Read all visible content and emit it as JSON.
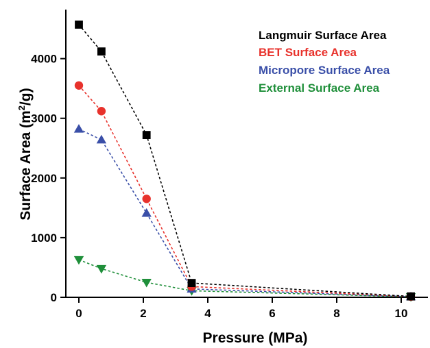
{
  "chart_data": {
    "type": "line",
    "title": "",
    "xlabel": "Pressure (MPa)",
    "ylabel_main": "Surface Area (m",
    "ylabel_sup": "2",
    "ylabel_tail": "/g)",
    "xlim": [
      0,
      10.8
    ],
    "ylim": [
      0,
      4750
    ],
    "x_ticks": [
      0,
      2,
      4,
      6,
      8,
      10
    ],
    "y_ticks": [
      0,
      1000,
      2000,
      3000,
      4000
    ],
    "legend_position": "top-right",
    "series": [
      {
        "name": "Langmuir Surface Area",
        "color": "#000000",
        "marker": "square",
        "x": [
          0,
          0.7,
          2.1,
          3.5,
          10.3
        ],
        "y": [
          4570,
          4120,
          2720,
          240,
          15
        ]
      },
      {
        "name": "BET Surface Area",
        "color": "#e8322c",
        "marker": "circle",
        "x": [
          0,
          0.7,
          2.1,
          3.5,
          10.3
        ],
        "y": [
          3550,
          3120,
          1650,
          180,
          12
        ]
      },
      {
        "name": "Micropore Surface Area",
        "color": "#3a4fa8",
        "marker": "triangle-up",
        "x": [
          0,
          0.7,
          2.1,
          3.5,
          10.3
        ],
        "y": [
          2820,
          2640,
          1410,
          140,
          10
        ]
      },
      {
        "name": "External Surface Area",
        "color": "#1f8f3a",
        "marker": "triangle-down",
        "x": [
          0,
          0.7,
          2.1,
          3.5,
          10.3
        ],
        "y": [
          630,
          480,
          250,
          110,
          8
        ]
      }
    ]
  }
}
